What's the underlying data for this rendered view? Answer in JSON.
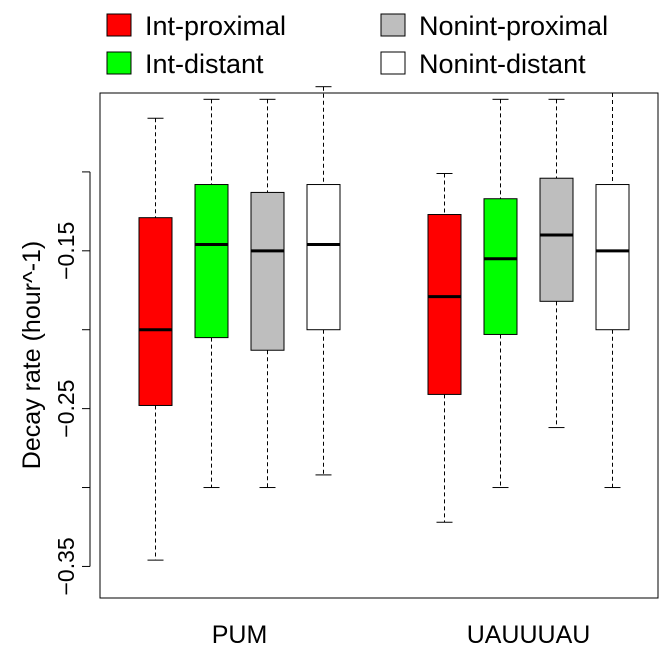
{
  "chart_data": {
    "type": "boxplot",
    "title": "",
    "xlabel": "",
    "ylabel": "Decay rate (hour^-1)",
    "ylim": [
      -0.37,
      -0.05
    ],
    "yticks": [
      -0.35,
      -0.25,
      -0.15
    ],
    "ytick_labels": [
      "−0.35",
      "−0.25",
      "−0.15"
    ],
    "grid": false,
    "legend_position": "top",
    "groups": [
      "PUM",
      "UAUUUAU"
    ],
    "series": [
      {
        "name": "Int-proximal",
        "color": "#ff0000",
        "boxes": [
          {
            "group": "PUM",
            "whisker_low": -0.346,
            "q1": -0.248,
            "median": -0.2,
            "q3": -0.129,
            "whisker_high": -0.066
          },
          {
            "group": "UAUUUAU",
            "whisker_low": -0.322,
            "q1": -0.241,
            "median": -0.179,
            "q3": -0.127,
            "whisker_high": -0.101
          }
        ]
      },
      {
        "name": "Int-distant",
        "color": "#00ff00",
        "boxes": [
          {
            "group": "PUM",
            "whisker_low": -0.3,
            "q1": -0.205,
            "median": -0.146,
            "q3": -0.108,
            "whisker_high": -0.054
          },
          {
            "group": "UAUUUAU",
            "whisker_low": -0.3,
            "q1": -0.203,
            "median": -0.155,
            "q3": -0.117,
            "whisker_high": -0.054
          }
        ]
      },
      {
        "name": "Nonint-proximal",
        "color": "#bebebe",
        "boxes": [
          {
            "group": "PUM",
            "whisker_low": -0.3,
            "q1": -0.213,
            "median": -0.15,
            "q3": -0.113,
            "whisker_high": -0.054
          },
          {
            "group": "UAUUUAU",
            "whisker_low": -0.262,
            "q1": -0.182,
            "median": -0.14,
            "q3": -0.104,
            "whisker_high": -0.054
          }
        ]
      },
      {
        "name": "Nonint-distant",
        "color": "#ffffff",
        "boxes": [
          {
            "group": "PUM",
            "whisker_low": -0.292,
            "q1": -0.2,
            "median": -0.146,
            "q3": -0.108,
            "whisker_high": -0.046
          },
          {
            "group": "UAUUUAU",
            "whisker_low": -0.3,
            "q1": -0.2,
            "median": -0.15,
            "q3": -0.108,
            "whisker_high": -0.05
          }
        ]
      }
    ]
  }
}
